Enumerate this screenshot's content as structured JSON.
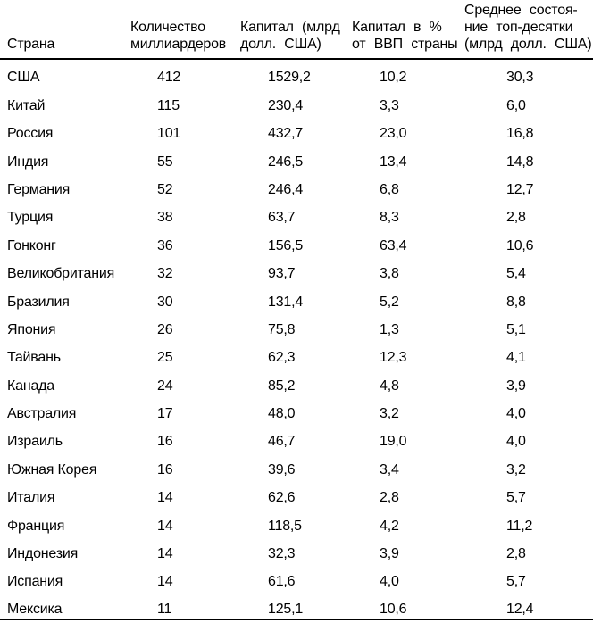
{
  "colors": {
    "text": "#000000",
    "background": "#ffffff",
    "rule": "#000000"
  },
  "table": {
    "columns": [
      {
        "key": "country",
        "label": "Страна"
      },
      {
        "key": "billionaires",
        "label": "Количество\nмиллиардеров"
      },
      {
        "key": "capital",
        "label": "Капитал (млрд\nдолл. США)"
      },
      {
        "key": "capital_pct_gdp",
        "label": "Капитал в %\nот ВВП страны"
      },
      {
        "key": "avg_top10",
        "label": "Среднее состоя-\nние топ-десятки\n(млрд долл. США)"
      }
    ],
    "rows": [
      {
        "country": "США",
        "billionaires": "412",
        "capital": "1529,2",
        "capital_pct_gdp": "10,2",
        "avg_top10": "30,3"
      },
      {
        "country": "Китай",
        "billionaires": "115",
        "capital": "230,4",
        "capital_pct_gdp": "3,3",
        "avg_top10": "6,0"
      },
      {
        "country": "Россия",
        "billionaires": "101",
        "capital": "432,7",
        "capital_pct_gdp": "23,0",
        "avg_top10": "16,8"
      },
      {
        "country": "Индия",
        "billionaires": "55",
        "capital": "246,5",
        "capital_pct_gdp": "13,4",
        "avg_top10": "14,8"
      },
      {
        "country": "Германия",
        "billionaires": "52",
        "capital": "246,4",
        "capital_pct_gdp": "6,8",
        "avg_top10": "12,7"
      },
      {
        "country": "Турция",
        "billionaires": "38",
        "capital": "63,7",
        "capital_pct_gdp": "8,3",
        "avg_top10": "2,8"
      },
      {
        "country": "Гонконг",
        "billionaires": "36",
        "capital": "156,5",
        "capital_pct_gdp": "63,4",
        "avg_top10": "10,6"
      },
      {
        "country": "Великобритания",
        "billionaires": "32",
        "capital": "93,7",
        "capital_pct_gdp": "3,8",
        "avg_top10": "5,4"
      },
      {
        "country": "Бразилия",
        "billionaires": "30",
        "capital": "131,4",
        "capital_pct_gdp": "5,2",
        "avg_top10": "8,8"
      },
      {
        "country": "Япония",
        "billionaires": "26",
        "capital": "75,8",
        "capital_pct_gdp": "1,3",
        "avg_top10": "5,1"
      },
      {
        "country": "Тайвань",
        "billionaires": "25",
        "capital": "62,3",
        "capital_pct_gdp": "12,3",
        "avg_top10": "4,1"
      },
      {
        "country": "Канада",
        "billionaires": "24",
        "capital": "85,2",
        "capital_pct_gdp": "4,8",
        "avg_top10": "3,9"
      },
      {
        "country": "Австралия",
        "billionaires": "17",
        "capital": "48,0",
        "capital_pct_gdp": "3,2",
        "avg_top10": "4,0"
      },
      {
        "country": "Израиль",
        "billionaires": "16",
        "capital": "46,7",
        "capital_pct_gdp": "19,0",
        "avg_top10": "4,0"
      },
      {
        "country": "Южная Корея",
        "billionaires": "16",
        "capital": "39,6",
        "capital_pct_gdp": "3,4",
        "avg_top10": "3,2"
      },
      {
        "country": "Италия",
        "billionaires": "14",
        "capital": "62,6",
        "capital_pct_gdp": "2,8",
        "avg_top10": "5,7"
      },
      {
        "country": "Франция",
        "billionaires": "14",
        "capital": "118,5",
        "capital_pct_gdp": "4,2",
        "avg_top10": "11,2"
      },
      {
        "country": "Индонезия",
        "billionaires": "14",
        "capital": "32,3",
        "capital_pct_gdp": "3,9",
        "avg_top10": "2,8"
      },
      {
        "country": "Испания",
        "billionaires": "14",
        "capital": "61,6",
        "capital_pct_gdp": "4,0",
        "avg_top10": "5,7"
      },
      {
        "country": "Мексика",
        "billionaires": "11",
        "capital": "125,1",
        "capital_pct_gdp": "10,6",
        "avg_top10": "12,4"
      }
    ]
  }
}
